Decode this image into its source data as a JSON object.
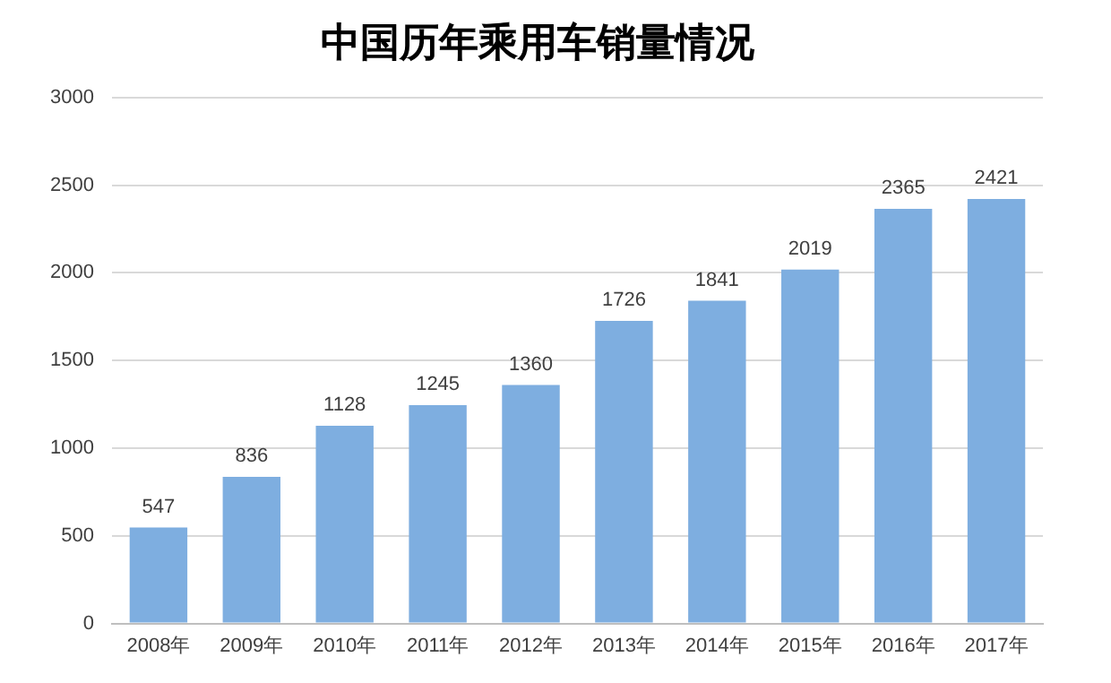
{
  "chart_data": {
    "type": "bar",
    "title": "中国历年乘用车销量情况",
    "categories": [
      "2008年",
      "2009年",
      "2010年",
      "2011年",
      "2012年",
      "2013年",
      "2014年",
      "2015年",
      "2016年",
      "2017年"
    ],
    "values": [
      547,
      836,
      1128,
      1245,
      1360,
      1726,
      1841,
      2019,
      2365,
      2421
    ],
    "color": "#7eaee0",
    "ylim": [
      0,
      3000
    ],
    "yticks": [
      0,
      500,
      1000,
      1500,
      2000,
      2500,
      3000
    ],
    "grid": "y",
    "data_labels": true,
    "legend": false
  }
}
